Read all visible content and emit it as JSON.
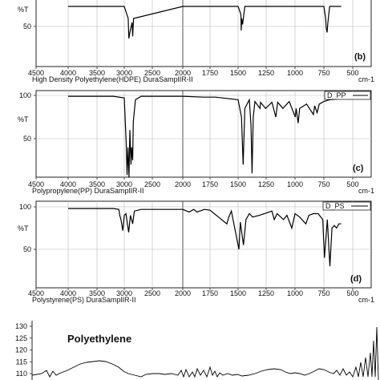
{
  "chart_data": [
    {
      "type": "line",
      "panel_label": "(b)",
      "caption": "High Density Polyethylene(HDPE) DuraSamplIR-II",
      "xunit": "cm-1",
      "ylabel": "%T",
      "xlim": [
        4500,
        500
      ],
      "x_ticks": [
        "4500",
        "4000",
        "3500",
        "3000",
        "2500",
        "2000",
        "1750",
        "1500",
        "1250",
        "1000",
        "750",
        "500"
      ],
      "y_ticks": [
        {
          "v": 50,
          "label": "50"
        }
      ],
      "series": [
        {
          "x": [
            4000,
            3000,
            2930,
            2918,
            2900,
            2860,
            2850,
            2835,
            2000,
            1500,
            1475,
            1472,
            1468,
            1460,
            1440,
            750,
            735,
            729,
            722,
            715,
            700,
            600
          ],
          "y": [
            100,
            100,
            70,
            20,
            35,
            60,
            25,
            70,
            100,
            100,
            80,
            40,
            70,
            55,
            100,
            100,
            70,
            45,
            35,
            60,
            100,
            100
          ]
        }
      ]
    },
    {
      "type": "line",
      "panel_label": "(c)",
      "caption": "Polypropylene(PP) DuraSamplIR-II",
      "legend": "D_PP",
      "xunit": "cm-1",
      "ylabel": "%T",
      "ylim": [
        0,
        105
      ],
      "xlim": [
        4500,
        500
      ],
      "x_ticks": [
        "4500",
        "4000",
        "3500",
        "3000",
        "2500",
        "2000",
        "1750",
        "1500",
        "1250",
        "1000",
        "750",
        "500"
      ],
      "y_ticks": [
        {
          "v": 100,
          "label": "100"
        },
        {
          "v": 50,
          "label": "50"
        }
      ],
      "series": [
        {
          "name": "D_PP",
          "x": [
            4000,
            3200,
            3000,
            2965,
            2950,
            2935,
            2915,
            2900,
            2880,
            2868,
            2850,
            2838,
            2800,
            2700,
            2000,
            1800,
            1700,
            1500,
            1470,
            1455,
            1440,
            1400,
            1385,
            1376,
            1365,
            1350,
            1305,
            1300,
            1255,
            1200,
            1167,
            1150,
            1105,
            1050,
            998,
            990,
            973,
            960,
            900,
            841,
            830,
            808,
            790,
            750,
            700,
            600
          ],
          "y": [
            99,
            99,
            97,
            45,
            8,
            40,
            5,
            60,
            20,
            40,
            25,
            70,
            95,
            99,
            99,
            98,
            98,
            95,
            75,
            20,
            85,
            95,
            65,
            10,
            75,
            93,
            85,
            92,
            85,
            92,
            75,
            92,
            85,
            93,
            75,
            85,
            68,
            85,
            90,
            78,
            88,
            80,
            90,
            93,
            95,
            96
          ]
        }
      ]
    },
    {
      "type": "line",
      "panel_label": "(d)",
      "caption": "Polystyrene(PS) DuraSamplIR-II",
      "legend": "D_PS",
      "xunit": "cm-1",
      "ylabel": "%T",
      "ylim": [
        0,
        105
      ],
      "xlim": [
        4500,
        500
      ],
      "x_ticks": [
        "4500",
        "4000",
        "3500",
        "3000",
        "2500",
        "2000",
        "1750",
        "1500",
        "1250",
        "1000",
        "750",
        "500"
      ],
      "y_ticks": [
        {
          "v": 100,
          "label": "100"
        },
        {
          "v": 50,
          "label": "50"
        }
      ],
      "series": [
        {
          "name": "D_PS",
          "x": [
            4000,
            3200,
            3100,
            3082,
            3060,
            3026,
            3000,
            2970,
            2922,
            2890,
            2850,
            2820,
            2700,
            2000,
            1942,
            1900,
            1870,
            1800,
            1750,
            1601,
            1583,
            1560,
            1493,
            1480,
            1452,
            1430,
            1400,
            1370,
            1310,
            1200,
            1180,
            1155,
            1100,
            1070,
            1028,
            1000,
            960,
            906,
            880,
            840,
            800,
            760,
            745,
            720,
            698,
            680,
            660,
            640,
            620,
            600
          ],
          "y": [
            98,
            98,
            97,
            90,
            85,
            72,
            90,
            92,
            70,
            90,
            80,
            95,
            97,
            97,
            94,
            97,
            94,
            97,
            96,
            80,
            88,
            95,
            50,
            82,
            55,
            85,
            92,
            88,
            90,
            95,
            85,
            92,
            85,
            90,
            75,
            92,
            88,
            80,
            90,
            92,
            92,
            85,
            40,
            85,
            30,
            75,
            78,
            75,
            80,
            80
          ]
        }
      ]
    },
    {
      "type": "line",
      "title": "Polyethylene",
      "y_ticks": [
        {
          "v": 130,
          "label": "130"
        },
        {
          "v": 125,
          "label": "125"
        },
        {
          "v": 120,
          "label": "120"
        },
        {
          "v": 115,
          "label": "115"
        },
        {
          "v": 110,
          "label": "110"
        }
      ],
      "ylim": [
        107,
        131
      ]
    }
  ]
}
